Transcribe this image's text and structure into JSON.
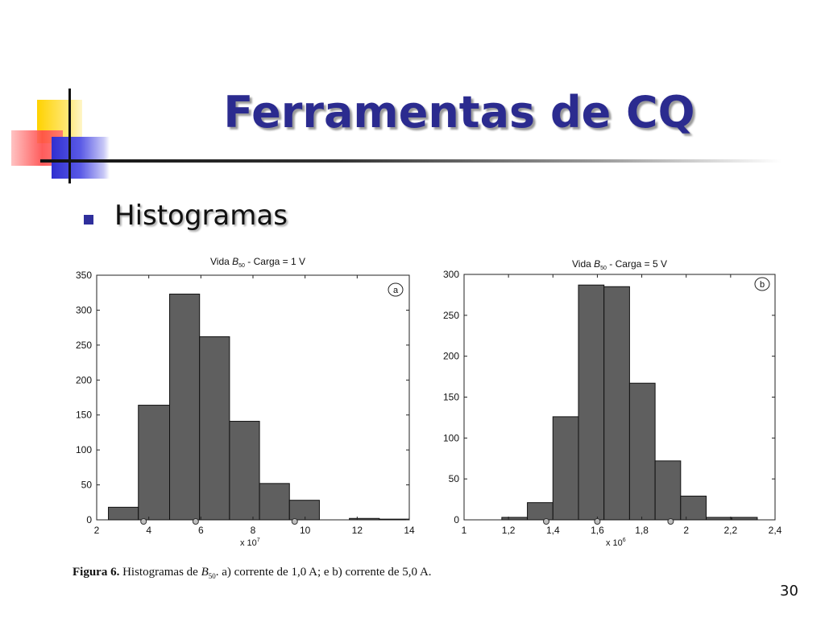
{
  "slide": {
    "title": "Ferramentas de CQ",
    "bullet": "Histogramas",
    "page_number": "30",
    "title_color": "#2b2b8f",
    "bar_color": "#5f5f5f"
  },
  "caption": {
    "bold": "Figura 6.",
    "text_prefix": " Histogramas de ",
    "symbol": "B",
    "subscript": "50",
    "text_suffix": ". a) corrente de 1,0 A; e b) corrente de 5,0 A."
  },
  "chart_data": [
    {
      "type": "bar",
      "panel_label": "a",
      "title_prefix": "Vida ",
      "title_symbol": "B",
      "title_subscript": "50",
      "title_suffix": " - Carga = 1 V",
      "xlim": [
        2,
        14
      ],
      "ylim": [
        0,
        350
      ],
      "x_ticks": [
        2,
        4,
        6,
        8,
        10,
        12,
        14
      ],
      "y_ticks": [
        0,
        50,
        100,
        150,
        200,
        250,
        300,
        350
      ],
      "x_multiplier": "x 10",
      "x_multiplier_exp": "7",
      "bins": [
        {
          "x0": 2.45,
          "x1": 3.6,
          "value": 18
        },
        {
          "x0": 3.6,
          "x1": 4.8,
          "value": 164
        },
        {
          "x0": 4.8,
          "x1": 5.95,
          "value": 323
        },
        {
          "x0": 5.95,
          "x1": 7.1,
          "value": 262
        },
        {
          "x0": 7.1,
          "x1": 8.25,
          "value": 141
        },
        {
          "x0": 8.25,
          "x1": 9.4,
          "value": 52
        },
        {
          "x0": 9.4,
          "x1": 10.55,
          "value": 28
        },
        {
          "x0": 10.55,
          "x1": 11.7,
          "value": 0
        },
        {
          "x0": 11.7,
          "x1": 12.85,
          "value": 2
        },
        {
          "x0": 12.85,
          "x1": 14.0,
          "value": 1
        }
      ],
      "markers": [
        3.8,
        5.8,
        9.6
      ]
    },
    {
      "type": "bar",
      "panel_label": "b",
      "title_prefix": "Vida ",
      "title_symbol": "B",
      "title_subscript": "50",
      "title_suffix": " - Carga = 5 V",
      "xlim": [
        1,
        2.4
      ],
      "ylim": [
        0,
        300
      ],
      "x_ticks": [
        1,
        1.2,
        1.4,
        1.6,
        1.8,
        2,
        2.2,
        2.4
      ],
      "x_tick_labels": [
        "1",
        "1,2",
        "1,4",
        "1,6",
        "1,8",
        "2",
        "2,2",
        "2,4"
      ],
      "y_ticks": [
        0,
        50,
        100,
        150,
        200,
        250,
        300
      ],
      "x_multiplier": "x 10",
      "x_multiplier_exp": "6",
      "bins": [
        {
          "x0": 1.17,
          "x1": 1.285,
          "value": 3
        },
        {
          "x0": 1.285,
          "x1": 1.4,
          "value": 21
        },
        {
          "x0": 1.4,
          "x1": 1.515,
          "value": 126
        },
        {
          "x0": 1.515,
          "x1": 1.63,
          "value": 287
        },
        {
          "x0": 1.63,
          "x1": 1.745,
          "value": 285
        },
        {
          "x0": 1.745,
          "x1": 1.86,
          "value": 167
        },
        {
          "x0": 1.86,
          "x1": 1.975,
          "value": 72
        },
        {
          "x0": 1.975,
          "x1": 2.09,
          "value": 29
        },
        {
          "x0": 2.09,
          "x1": 2.205,
          "value": 3
        },
        {
          "x0": 2.205,
          "x1": 2.32,
          "value": 3
        }
      ],
      "markers": [
        1.37,
        1.6,
        1.93
      ]
    }
  ]
}
